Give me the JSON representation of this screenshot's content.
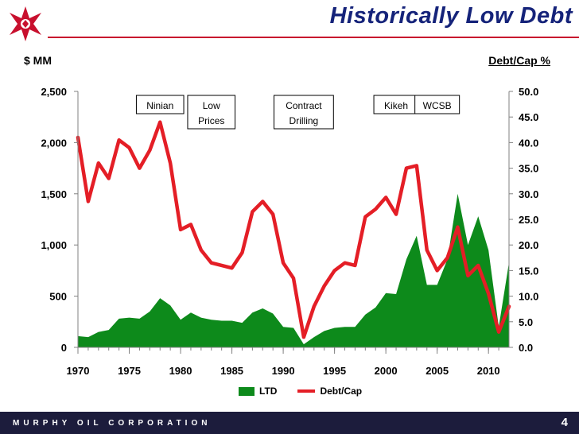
{
  "slide": {
    "title": "Historically Low Debt",
    "footer_text": "MURPHY OIL CORPORATION",
    "page_number": "4",
    "colors": {
      "title": "#15237a",
      "footer_bg": "#1c1c3c",
      "accent": "#c8102e"
    }
  },
  "chart_data": {
    "type": "area",
    "ylabel": "$ MM",
    "y2label": "Debt/Cap %",
    "ylim": [
      0,
      2500
    ],
    "y2lim": [
      0,
      50
    ],
    "yticks": [
      "0",
      "500",
      "1,000",
      "1,500",
      "2,000",
      "2,500"
    ],
    "y2ticks": [
      "0.0",
      "5.0",
      "10.0",
      "15.0",
      "20.0",
      "25.0",
      "30.0",
      "35.0",
      "40.0",
      "45.0",
      "50.0"
    ],
    "xlim": [
      1970,
      2012
    ],
    "xticks": [
      "1970",
      "1975",
      "1980",
      "1985",
      "1990",
      "1995",
      "2000",
      "2005",
      "2010"
    ],
    "legend_position": "bottom",
    "grid": false,
    "x": [
      1970,
      1971,
      1972,
      1973,
      1974,
      1975,
      1976,
      1977,
      1978,
      1979,
      1980,
      1981,
      1982,
      1983,
      1984,
      1985,
      1986,
      1987,
      1988,
      1989,
      1990,
      1991,
      1992,
      1993,
      1994,
      1995,
      1996,
      1997,
      1998,
      1999,
      2000,
      2001,
      2002,
      2003,
      2004,
      2005,
      2006,
      2007,
      2008,
      2009,
      2010,
      2011,
      2012
    ],
    "series": [
      {
        "name": "LTD",
        "type": "area",
        "axis": "left",
        "color": "#0d8a1b",
        "values": [
          110,
          100,
          150,
          170,
          280,
          290,
          280,
          350,
          480,
          410,
          270,
          340,
          290,
          270,
          260,
          260,
          240,
          340,
          380,
          330,
          200,
          190,
          30,
          100,
          160,
          190,
          200,
          200,
          320,
          390,
          530,
          520,
          860,
          1090,
          610,
          610,
          860,
          1500,
          1000,
          1280,
          950,
          200,
          830
        ]
      },
      {
        "name": "Debt/Cap",
        "type": "line",
        "axis": "right",
        "color": "#e41e26",
        "values": [
          41,
          28.5,
          36,
          33,
          40.5,
          39,
          35,
          38.5,
          44,
          36,
          23,
          24,
          19,
          16.5,
          16,
          15.5,
          18.5,
          26.5,
          28.5,
          26,
          16.5,
          13.5,
          2,
          8,
          12,
          15,
          16.5,
          16,
          25.5,
          27,
          29.3,
          26,
          35,
          35.5,
          19,
          15,
          17.5,
          23.5,
          14,
          16,
          10.5,
          3,
          8
        ]
      }
    ],
    "annotations": [
      {
        "text": "Ninian",
        "x": 1978
      },
      {
        "text": "Low Prices",
        "x": 1983
      },
      {
        "text": "Contract Drilling",
        "x": 1992
      },
      {
        "text": "Kikeh",
        "x": 2001
      },
      {
        "text": "WCSB",
        "x": 2005
      }
    ]
  }
}
